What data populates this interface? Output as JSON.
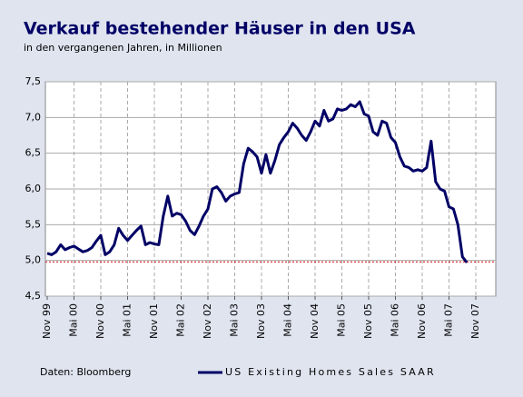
{
  "chart_data": {
    "type": "line",
    "title": "Verkauf bestehender Häuser in den USA",
    "subtitle": "in den vergangenen Jahren, in Millionen",
    "source": "Daten: Bloomberg",
    "categories": [
      "Nov 99",
      null,
      null,
      null,
      null,
      null,
      "Mai 00",
      null,
      null,
      null,
      null,
      null,
      "Nov 00",
      null,
      null,
      null,
      null,
      null,
      "Mai 01",
      null,
      null,
      null,
      null,
      null,
      "Nov 01",
      null,
      null,
      null,
      null,
      null,
      "Mai 02",
      null,
      null,
      null,
      null,
      null,
      "Nov 02",
      null,
      null,
      null,
      null,
      null,
      "Mai 03",
      null,
      null,
      null,
      null,
      null,
      "Nov 03",
      null,
      null,
      null,
      null,
      null,
      "Mai 04",
      null,
      null,
      null,
      null,
      null,
      "Nov 04",
      null,
      null,
      null,
      null,
      null,
      "Mai 05",
      null,
      null,
      null,
      null,
      null,
      "Nov 05",
      null,
      null,
      null,
      null,
      null,
      "Mai 06",
      null,
      null,
      null,
      null,
      null,
      "Nov 06",
      null,
      null,
      null,
      null,
      null,
      "Mai 07",
      null,
      null,
      null,
      null,
      null,
      "Nov 07"
    ],
    "series": [
      {
        "name": "US Existing Homes Sales SAAR",
        "color": "#000066",
        "values": [
          5.1,
          5.08,
          5.12,
          5.22,
          5.15,
          5.18,
          5.2,
          5.16,
          5.12,
          5.14,
          5.18,
          5.27,
          5.35,
          5.08,
          5.12,
          5.22,
          5.45,
          5.35,
          5.28,
          5.35,
          5.42,
          5.48,
          5.22,
          5.25,
          5.23,
          5.22,
          5.62,
          5.9,
          5.62,
          5.66,
          5.64,
          5.55,
          5.42,
          5.36,
          5.48,
          5.62,
          5.72,
          6.0,
          6.03,
          5.95,
          5.83,
          5.9,
          5.93,
          5.95,
          6.35,
          6.57,
          6.52,
          6.45,
          6.22,
          6.48,
          6.22,
          6.4,
          6.62,
          6.72,
          6.8,
          6.92,
          6.85,
          6.75,
          6.68,
          6.8,
          6.95,
          6.88,
          7.1,
          6.95,
          6.98,
          7.12,
          7.1,
          7.12,
          7.18,
          7.15,
          7.22,
          7.05,
          7.02,
          6.8,
          6.75,
          6.95,
          6.92,
          6.72,
          6.65,
          6.45,
          6.32,
          6.3,
          6.25,
          6.27,
          6.25,
          6.3,
          6.67,
          6.1,
          6.0,
          5.97,
          5.75,
          5.72,
          5.5,
          5.05,
          4.97,
          null,
          null
        ]
      }
    ],
    "ylim": [
      4.5,
      7.5
    ],
    "yticks": [
      {
        "value": 4.5,
        "label": "4,5"
      },
      {
        "value": 5.0,
        "label": "5,0"
      },
      {
        "value": 5.5,
        "label": "5,5"
      },
      {
        "value": 6.0,
        "label": "6,0"
      },
      {
        "value": 6.5,
        "label": "6,5"
      },
      {
        "value": 7.0,
        "label": "7,0"
      },
      {
        "value": 7.5,
        "label": "7,5"
      }
    ],
    "grid": true,
    "reference_line": {
      "value": 4.98,
      "color": "#cc0000"
    },
    "legend": "bottom-right"
  }
}
